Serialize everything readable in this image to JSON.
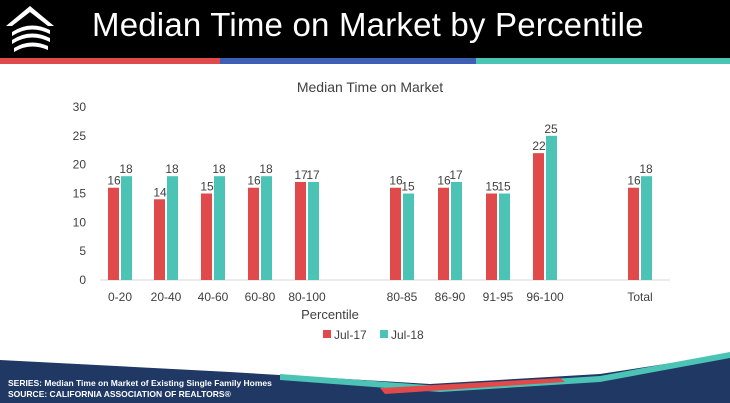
{
  "slide": {
    "title": "Median Time on Market by Percentile"
  },
  "colors": {
    "header_bg": "#000000",
    "jul17": "#e14a4a",
    "jul18": "#4bc4b6",
    "stripe_red": "#e14a4a",
    "stripe_blue": "#3f5fb6",
    "stripe_teal": "#4bc4b6",
    "footer_navy": "#1f3864"
  },
  "logo": {
    "icon": "house-swirl-logo"
  },
  "chart_data": {
    "type": "bar",
    "title": "Median Time on Market",
    "xlabel": "Percentile",
    "ylabel": "",
    "ylim": [
      0,
      30
    ],
    "yticks": [
      0,
      5,
      10,
      15,
      20,
      25,
      30
    ],
    "grid": false,
    "legend_position": "bottom",
    "categories": [
      "0-20",
      "20-40",
      "40-60",
      "60-80",
      "80-100",
      "80-85",
      "86-90",
      "91-95",
      "96-100",
      "Total"
    ],
    "series": [
      {
        "name": "Jul-17",
        "values": [
          16,
          14,
          15,
          16,
          17,
          16,
          16,
          15,
          22,
          16
        ]
      },
      {
        "name": "Jul-18",
        "values": [
          18,
          18,
          18,
          18,
          17,
          15,
          17,
          15,
          25,
          18
        ]
      }
    ]
  },
  "footer": {
    "series_line": "SERIES: Median Time on Market of Existing Single Family Homes",
    "source_line": "SOURCE:  CALIFORNIA ASSOCIATION OF REALTORS®"
  }
}
